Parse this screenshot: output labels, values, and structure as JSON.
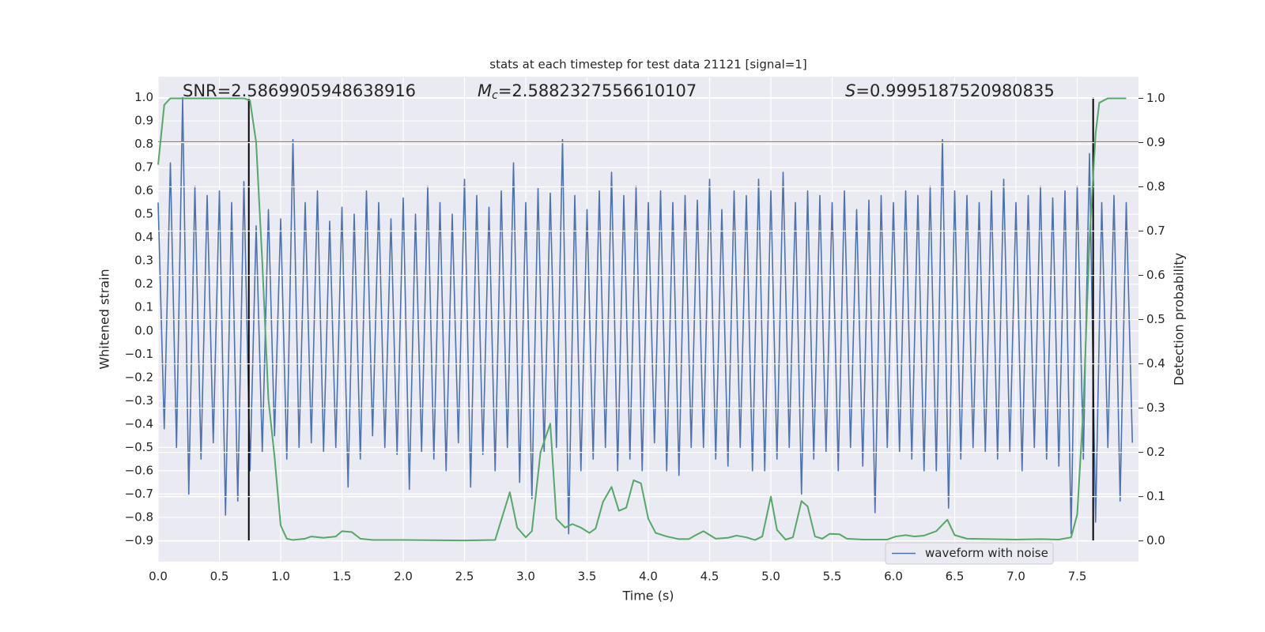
{
  "chart_data": {
    "type": "line",
    "title": "stats at each timestep for test data 21121 [signal=1]",
    "xlabel": "Time (s)",
    "ylabel": "Whitened strain",
    "y2label": "Detection probability",
    "annotations": [
      {
        "text": "SNR=2.5869905948638916"
      },
      {
        "symbol": "M",
        "subscript": "c",
        "text": "=2.5882327556610107"
      },
      {
        "symbol": "S",
        "text": "=0.9995187520980835"
      }
    ],
    "xlim": [
      0,
      8
    ],
    "ylim": [
      -0.99,
      1.09
    ],
    "y2lim": [
      -0.047,
      1.049
    ],
    "xticks": [
      {
        "value": 0,
        "label": "0.0"
      },
      0.5,
      {
        "value": 1,
        "label": "1.0"
      },
      1.5,
      {
        "value": 2,
        "label": "2.0"
      },
      2.5,
      {
        "value": 3,
        "label": "3.0"
      },
      3.5,
      {
        "value": 4,
        "label": "4.0"
      },
      4.5,
      {
        "value": 5,
        "label": "5.0"
      },
      5.5,
      {
        "value": 6,
        "label": "6.0"
      },
      6.5,
      {
        "value": 7,
        "label": "7.0"
      },
      7.5
    ],
    "yticks": [
      {
        "value": -0.9,
        "label": "−0.9"
      },
      {
        "value": -0.8,
        "label": "−0.8"
      },
      {
        "value": -0.7,
        "label": "−0.7"
      },
      {
        "value": -0.6,
        "label": "−0.6"
      },
      {
        "value": -0.5,
        "label": "−0.5"
      },
      {
        "value": -0.4,
        "label": "−0.4"
      },
      {
        "value": -0.3,
        "label": "−0.3"
      },
      {
        "value": -0.2,
        "label": "−0.2"
      },
      {
        "value": -0.1,
        "label": "−0.1"
      },
      {
        "value": 0,
        "label": "0.0"
      },
      0.1,
      0.2,
      0.3,
      0.4,
      0.5,
      0.6,
      0.7,
      0.8,
      0.9,
      {
        "value": 1,
        "label": "1.0"
      }
    ],
    "y2ticks": [
      {
        "value": 0,
        "label": "0.0"
      },
      0.1,
      0.2,
      0.3,
      0.4,
      0.5,
      0.6,
      0.7,
      0.8,
      0.9,
      {
        "value": 1,
        "label": "1.0"
      }
    ],
    "grid": true,
    "legend": "lower right",
    "hline": {
      "y": 0.81,
      "color": "#c44e52"
    },
    "vlines": [
      {
        "x": 0.74,
        "ymin": -0.9,
        "ymax": 1.0,
        "color": "#000000"
      },
      {
        "x": 7.63,
        "ymin": -0.9,
        "ymax": 1.0,
        "color": "#000000"
      }
    ],
    "series": [
      {
        "name": "waveform with noise",
        "color": "#4c72b0",
        "x": [
          0,
          0.05,
          0.1,
          0.15,
          0.2,
          0.25,
          0.3,
          0.35,
          0.4,
          0.45,
          0.5,
          0.55,
          0.6,
          0.65,
          0.7,
          0.75,
          0.8,
          0.85,
          0.9,
          0.95,
          1,
          1.05,
          1.1,
          1.15,
          1.2,
          1.25,
          1.3,
          1.35,
          1.4,
          1.45,
          1.5,
          1.55,
          1.6,
          1.65,
          1.7,
          1.75,
          1.8,
          1.85,
          1.9,
          1.95,
          2,
          2.05,
          2.1,
          2.15,
          2.2,
          2.25,
          2.3,
          2.35,
          2.4,
          2.45,
          2.5,
          2.55,
          2.6,
          2.65,
          2.7,
          2.75,
          2.8,
          2.85,
          2.9,
          2.95,
          3,
          3.05,
          3.1,
          3.15,
          3.2,
          3.25,
          3.3,
          3.35,
          3.4,
          3.45,
          3.5,
          3.55,
          3.6,
          3.65,
          3.7,
          3.75,
          3.8,
          3.85,
          3.9,
          3.95,
          4,
          4.05,
          4.1,
          4.15,
          4.2,
          4.25,
          4.3,
          4.35,
          4.4,
          4.45,
          4.5,
          4.55,
          4.6,
          4.65,
          4.7,
          4.75,
          4.8,
          4.85,
          4.9,
          4.95,
          5,
          5.05,
          5.1,
          5.15,
          5.2,
          5.25,
          5.3,
          5.35,
          5.4,
          5.45,
          5.5,
          5.55,
          5.6,
          5.65,
          5.7,
          5.75,
          5.8,
          5.85,
          5.9,
          5.95,
          6,
          6.05,
          6.1,
          6.15,
          6.2,
          6.25,
          6.3,
          6.35,
          6.4,
          6.45,
          6.5,
          6.55,
          6.6,
          6.65,
          6.7,
          6.75,
          6.8,
          6.85,
          6.9,
          6.95,
          7,
          7.05,
          7.1,
          7.15,
          7.2,
          7.25,
          7.3,
          7.35,
          7.4,
          7.45,
          7.5,
          7.55,
          7.6,
          7.65,
          7.7,
          7.75,
          7.8,
          7.85,
          7.9,
          7.95
        ],
        "values": [
          0.55,
          -0.42,
          0.72,
          -0.5,
          1.0,
          -0.7,
          0.62,
          -0.55,
          0.58,
          -0.48,
          0.6,
          -0.79,
          0.55,
          -0.73,
          0.64,
          -0.6,
          0.45,
          -0.52,
          0.52,
          -0.45,
          0.48,
          -0.55,
          0.82,
          -0.5,
          0.55,
          -0.48,
          0.6,
          -0.52,
          0.47,
          -0.5,
          0.53,
          -0.67,
          0.5,
          -0.55,
          0.6,
          -0.45,
          0.55,
          -0.5,
          0.48,
          -0.53,
          0.57,
          -0.68,
          0.5,
          -0.52,
          0.62,
          -0.55,
          0.55,
          -0.6,
          0.5,
          -0.48,
          0.65,
          -0.67,
          0.58,
          -0.53,
          0.53,
          -0.6,
          0.6,
          -0.5,
          0.72,
          -0.65,
          0.55,
          -0.72,
          0.61,
          -0.52,
          0.59,
          -0.5,
          0.82,
          -0.87,
          0.58,
          -0.6,
          0.52,
          -0.55,
          0.6,
          -0.5,
          0.68,
          -0.6,
          0.58,
          -0.55,
          0.62,
          -0.6,
          0.55,
          -0.48,
          0.6,
          -0.6,
          0.55,
          -0.62,
          0.58,
          -0.5,
          0.56,
          -0.5,
          0.65,
          -0.55,
          0.52,
          -0.58,
          0.6,
          -0.5,
          0.58,
          -0.6,
          0.65,
          -0.6,
          0.6,
          -0.55,
          0.68,
          -0.5,
          0.55,
          -0.7,
          0.6,
          -0.55,
          0.58,
          -0.52,
          0.55,
          -0.6,
          0.6,
          -0.5,
          0.52,
          -0.58,
          0.56,
          -0.78,
          0.58,
          -0.5,
          0.55,
          -0.52,
          0.6,
          -0.55,
          0.58,
          -0.6,
          0.62,
          -0.6,
          0.82,
          -0.76,
          0.6,
          -0.55,
          0.58,
          -0.5,
          0.55,
          -0.52,
          0.6,
          -0.55,
          0.65,
          -0.52,
          0.55,
          -0.6,
          0.58,
          -0.5,
          0.62,
          -0.55,
          0.57,
          -0.58,
          0.6,
          -0.87,
          0.62,
          -0.55,
          0.76,
          -0.82,
          0.55,
          -0.5,
          0.58,
          -0.73,
          0.55,
          -0.48
        ]
      },
      {
        "color": "#55a868",
        "axis": "y2",
        "x": [
          0,
          0.05,
          0.1,
          0.2,
          0.3,
          0.4,
          0.5,
          0.6,
          0.7,
          0.75,
          0.8,
          0.85,
          0.9,
          0.95,
          1.0,
          1.05,
          1.1,
          1.2,
          1.25,
          1.35,
          1.45,
          1.5,
          1.58,
          1.65,
          1.75,
          2.0,
          2.5,
          2.75,
          2.87,
          2.93,
          3.0,
          3.05,
          3.12,
          3.2,
          3.25,
          3.32,
          3.38,
          3.45,
          3.52,
          3.57,
          3.63,
          3.7,
          3.76,
          3.82,
          3.88,
          3.94,
          4.0,
          4.06,
          4.15,
          4.25,
          4.33,
          4.38,
          4.45,
          4.55,
          4.65,
          4.72,
          4.8,
          4.87,
          4.93,
          5.0,
          5.05,
          5.12,
          5.18,
          5.25,
          5.3,
          5.36,
          5.42,
          5.48,
          5.56,
          5.62,
          5.75,
          5.95,
          6.02,
          6.1,
          6.17,
          6.25,
          6.35,
          6.44,
          6.5,
          6.6,
          7.0,
          7.2,
          7.35,
          7.45,
          7.5,
          7.55,
          7.6,
          7.65,
          7.68,
          7.75,
          7.9
        ],
        "values": [
          0.85,
          0.985,
          1.0,
          1.0,
          1.0,
          1.0,
          1.0,
          1.0,
          1.0,
          0.995,
          0.9,
          0.63,
          0.32,
          0.19,
          0.035,
          0.005,
          0.002,
          0.005,
          0.01,
          0.007,
          0.01,
          0.022,
          0.02,
          0.005,
          0.002,
          0.002,
          0.001,
          0.002,
          0.11,
          0.03,
          0.008,
          0.022,
          0.2,
          0.265,
          0.05,
          0.03,
          0.038,
          0.03,
          0.018,
          0.028,
          0.088,
          0.122,
          0.068,
          0.075,
          0.137,
          0.13,
          0.05,
          0.018,
          0.01,
          0.004,
          0.004,
          0.012,
          0.022,
          0.005,
          0.007,
          0.012,
          0.008,
          0.002,
          0.01,
          0.1,
          0.025,
          0.003,
          0.008,
          0.09,
          0.078,
          0.01,
          0.005,
          0.016,
          0.015,
          0.005,
          0.003,
          0.003,
          0.01,
          0.013,
          0.01,
          0.012,
          0.022,
          0.048,
          0.013,
          0.005,
          0.003,
          0.004,
          0.003,
          0.008,
          0.06,
          0.3,
          0.68,
          0.92,
          0.99,
          1.0,
          1.0
        ]
      }
    ]
  }
}
